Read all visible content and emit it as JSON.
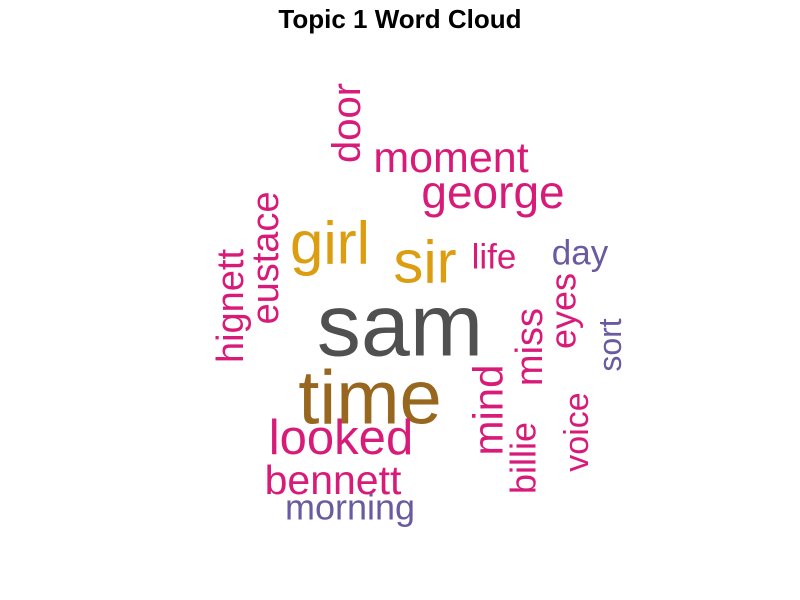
{
  "chart_data": {
    "type": "wordcloud",
    "title": "Topic 1 Word Cloud",
    "words": [
      {
        "text": "sam",
        "color": "#505050"
      },
      {
        "text": "time",
        "color": "#98671f"
      },
      {
        "text": "sir",
        "color": "#dc9d10"
      },
      {
        "text": "girl",
        "color": "#dc9d10"
      },
      {
        "text": "george",
        "color": "#d81b78"
      },
      {
        "text": "moment",
        "color": "#d81b78"
      },
      {
        "text": "looked",
        "color": "#d81b78"
      },
      {
        "text": "bennett",
        "color": "#d81b78"
      },
      {
        "text": "eustace",
        "color": "#d81b78"
      },
      {
        "text": "hignett",
        "color": "#d81b78"
      },
      {
        "text": "door",
        "color": "#d81b78"
      },
      {
        "text": "mind",
        "color": "#d81b78"
      },
      {
        "text": "miss",
        "color": "#d81b78"
      },
      {
        "text": "billie",
        "color": "#d81b78"
      },
      {
        "text": "eyes",
        "color": "#d81b78"
      },
      {
        "text": "voice",
        "color": "#d81b78"
      },
      {
        "text": "life",
        "color": "#d81b78"
      },
      {
        "text": "day",
        "color": "#6a5aa0"
      },
      {
        "text": "sort",
        "color": "#6a5aa0"
      },
      {
        "text": "morning",
        "color": "#6a5aa0"
      }
    ]
  }
}
